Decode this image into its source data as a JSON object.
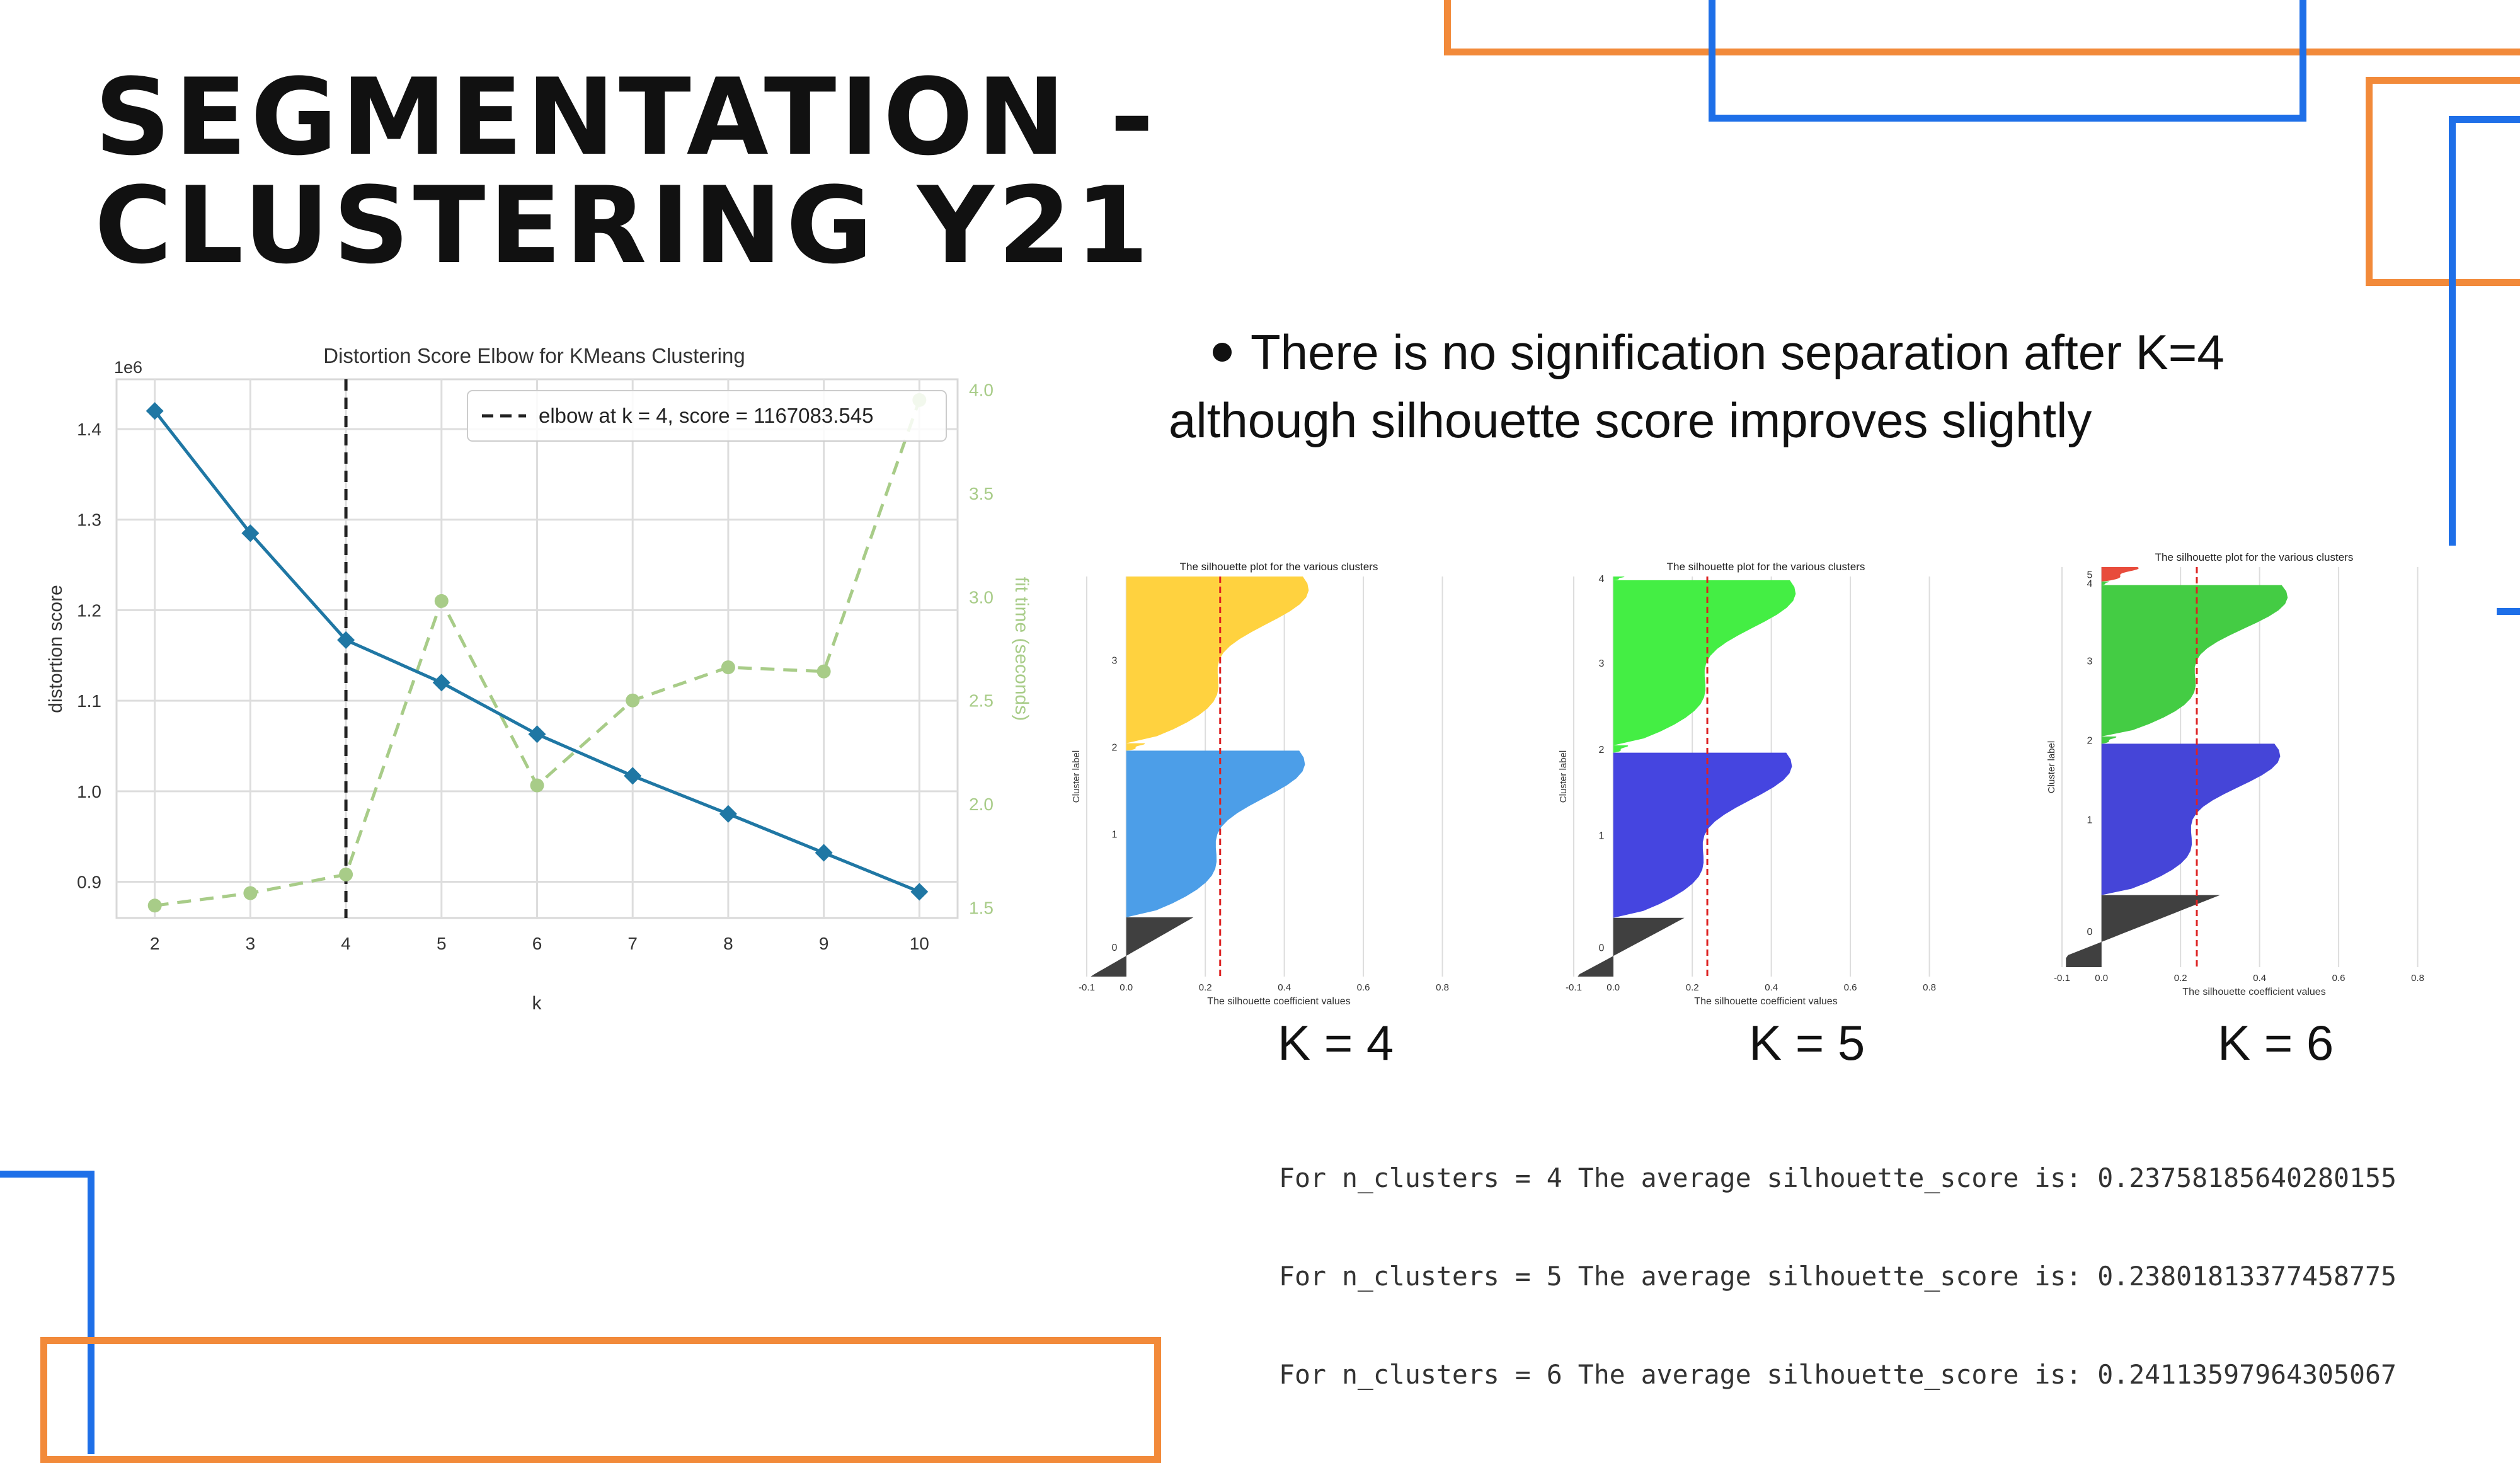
{
  "slide": {
    "title_lines": [
      "SEGMENTATION -",
      "CLUSTERING Y21"
    ],
    "bullet_line1": "There is no signification separation after K=4",
    "bullet_line2": "although silhouette score improves slightly",
    "k_labels": [
      "K = 4",
      "K = 5",
      "K = 6"
    ],
    "score_lines": [
      "For n_clusters = 4 The average silhouette_score is: 0.23758185640280155",
      "For n_clusters = 5 The average silhouette_score is: 0.23801813377458775",
      "For n_clusters = 6 The average silhouette_score is: 0.24113597964305067"
    ],
    "colors": {
      "orange": "#F28A3A",
      "blue": "#1E6FE8"
    }
  },
  "chart_data": [
    {
      "type": "line",
      "title": "Distortion Score Elbow for KMeans Clustering",
      "xlabel": "k",
      "ylabel": "distortion score",
      "y2label": "fit time (seconds)",
      "y_multiplier": "1e6",
      "x": [
        2,
        3,
        4,
        5,
        6,
        7,
        8,
        9,
        10
      ],
      "xlim": [
        1.6,
        10.4
      ],
      "ylim": [
        0.86,
        1.455
      ],
      "y2lim": [
        1.45,
        4.05
      ],
      "y_ticks": [
        "0.9",
        "1.0",
        "1.1",
        "1.2",
        "1.3",
        "1.4"
      ],
      "y2_ticks": [
        "1.5",
        "2.0",
        "2.5",
        "3.0",
        "3.5",
        "4.0"
      ],
      "series": [
        {
          "axis": "left",
          "values": [
            1.42,
            1.285,
            1.167,
            1.12,
            1.063,
            1.017,
            0.975,
            0.932,
            0.889
          ],
          "color": "#1f77a4"
        },
        {
          "axis": "right",
          "values": [
            1.51,
            1.57,
            1.66,
            2.98,
            2.09,
            2.5,
            2.66,
            2.64,
            3.95
          ],
          "color": "#a8cc88"
        }
      ],
      "elbow": {
        "k": 4,
        "legend_text": "elbow at k = 4, score = 1167083.545",
        "legend_placement": "top-right"
      },
      "grid": true
    },
    {
      "type": "area",
      "title": "The silhouette plot for the various clusters",
      "xlabel": "The silhouette coefficient values",
      "ylabel": "Cluster label",
      "n_clusters": 4,
      "x_ticks": [
        "-0.1",
        "0.0",
        "0.2",
        "0.4",
        "0.6",
        "0.8"
      ],
      "cluster_labels": [
        "0",
        "1",
        "2",
        "3"
      ],
      "clusters": [
        {
          "label": "0",
          "max": 0.17,
          "size": 0.16,
          "color": "#404040"
        },
        {
          "label": "1",
          "max": 0.48,
          "size": 0.45,
          "color": "#4c9ee8"
        },
        {
          "label": "2",
          "max": 0.05,
          "size": 0.02,
          "color": "#ffd23f"
        },
        {
          "label": "3",
          "max": 0.49,
          "size": 0.45,
          "color": "#ffd23f"
        }
      ],
      "average": 0.23758185640280155
    },
    {
      "type": "area",
      "title": "The silhouette plot for the various clusters",
      "xlabel": "The silhouette coefficient values",
      "ylabel": "Cluster label",
      "n_clusters": 5,
      "x_ticks": [
        "-0.1",
        "0.0",
        "0.2",
        "0.4",
        "0.6",
        "0.8"
      ],
      "cluster_labels": [
        "0",
        "1",
        "2",
        "3",
        "4"
      ],
      "clusters": [
        {
          "label": "0",
          "max": 0.18,
          "size": 0.16,
          "color": "#404040"
        },
        {
          "label": "1",
          "max": 0.48,
          "size": 0.45,
          "color": "#4545e0"
        },
        {
          "label": "2",
          "max": 0.04,
          "size": 0.02,
          "color": "#44ee44"
        },
        {
          "label": "3",
          "max": 0.49,
          "size": 0.45,
          "color": "#44ee44"
        },
        {
          "label": "4",
          "max": 0.03,
          "size": 0.01,
          "color": "#44ee44"
        }
      ],
      "average": 0.23801813377458775
    },
    {
      "type": "area",
      "title": "The silhouette plot for the various clusters",
      "xlabel": "The silhouette coefficient values",
      "ylabel": "Cluster label",
      "n_clusters": 6,
      "x_ticks": [
        "-0.1",
        "0.0",
        "0.2",
        "0.4",
        "0.6",
        "0.8"
      ],
      "cluster_labels": [
        "0",
        "1",
        "2",
        "3",
        "4",
        "5"
      ],
      "clusters": [
        {
          "label": "0",
          "max": 0.3,
          "size": 0.2,
          "color": "#404040"
        },
        {
          "label": "1",
          "max": 0.48,
          "size": 0.42,
          "color": "#4545d8"
        },
        {
          "label": "2",
          "max": 0.04,
          "size": 0.02,
          "color": "#44cc44"
        },
        {
          "label": "3",
          "max": 0.5,
          "size": 0.42,
          "color": "#44cc44"
        },
        {
          "label": "4",
          "max": 0.02,
          "size": 0.01,
          "color": "#44cc44"
        },
        {
          "label": "5",
          "max": 0.1,
          "size": 0.04,
          "color": "#e84c3c"
        }
      ],
      "average": 0.24113597964305067
    }
  ]
}
